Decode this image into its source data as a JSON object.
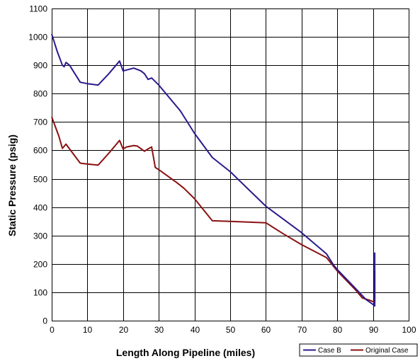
{
  "chart_data": {
    "type": "line",
    "xlabel": "Length Along Pipeline (miles)",
    "ylabel": "Static Pressure (psig)",
    "xlim": [
      0,
      100
    ],
    "ylim": [
      0,
      1100
    ],
    "x_ticks": [
      0,
      10,
      20,
      30,
      40,
      50,
      60,
      70,
      80,
      90,
      100
    ],
    "y_ticks": [
      0,
      100,
      200,
      300,
      400,
      500,
      600,
      700,
      800,
      900,
      1000,
      1100
    ],
    "grid": true,
    "legend_position": "bottom-right",
    "series": [
      {
        "name": "Case B",
        "color": "#2b1a8c",
        "points": [
          [
            0,
            1010
          ],
          [
            1.5,
            950
          ],
          [
            3,
            900
          ],
          [
            3.5,
            895
          ],
          [
            4,
            910
          ],
          [
            5,
            900
          ],
          [
            7,
            860
          ],
          [
            8,
            840
          ],
          [
            10,
            835
          ],
          [
            13,
            830
          ],
          [
            16,
            870
          ],
          [
            19,
            915
          ],
          [
            20,
            880
          ],
          [
            23,
            890
          ],
          [
            25,
            880
          ],
          [
            26,
            870
          ],
          [
            27,
            850
          ],
          [
            28,
            855
          ],
          [
            30,
            830
          ],
          [
            36,
            740
          ],
          [
            40,
            660
          ],
          [
            45,
            575
          ],
          [
            50,
            525
          ],
          [
            60,
            403
          ],
          [
            70,
            310
          ],
          [
            77,
            235
          ],
          [
            78,
            215
          ],
          [
            79,
            195
          ],
          [
            80,
            180
          ],
          [
            85,
            115
          ],
          [
            88,
            75
          ],
          [
            90,
            57
          ],
          [
            90.5,
            52
          ],
          [
            90.5,
            240
          ]
        ]
      },
      {
        "name": "Original Case",
        "color": "#8b1010",
        "points": [
          [
            0,
            718
          ],
          [
            2,
            650
          ],
          [
            3,
            607
          ],
          [
            4,
            622
          ],
          [
            5,
            605
          ],
          [
            8,
            555
          ],
          [
            10,
            552
          ],
          [
            13,
            548
          ],
          [
            16,
            590
          ],
          [
            19,
            635
          ],
          [
            20,
            605
          ],
          [
            21,
            612
          ],
          [
            23,
            617
          ],
          [
            24,
            615
          ],
          [
            26,
            597
          ],
          [
            27,
            605
          ],
          [
            28,
            612
          ],
          [
            29,
            540
          ],
          [
            30,
            532
          ],
          [
            35,
            487
          ],
          [
            37,
            467
          ],
          [
            40,
            430
          ],
          [
            45,
            352
          ],
          [
            50,
            350
          ],
          [
            60,
            345
          ],
          [
            65,
            305
          ],
          [
            70,
            268
          ],
          [
            77,
            222
          ],
          [
            80,
            175
          ],
          [
            85,
            110
          ],
          [
            87,
            80
          ],
          [
            89,
            72
          ],
          [
            90.5,
            65
          ],
          [
            90.5,
            175
          ]
        ]
      }
    ]
  }
}
